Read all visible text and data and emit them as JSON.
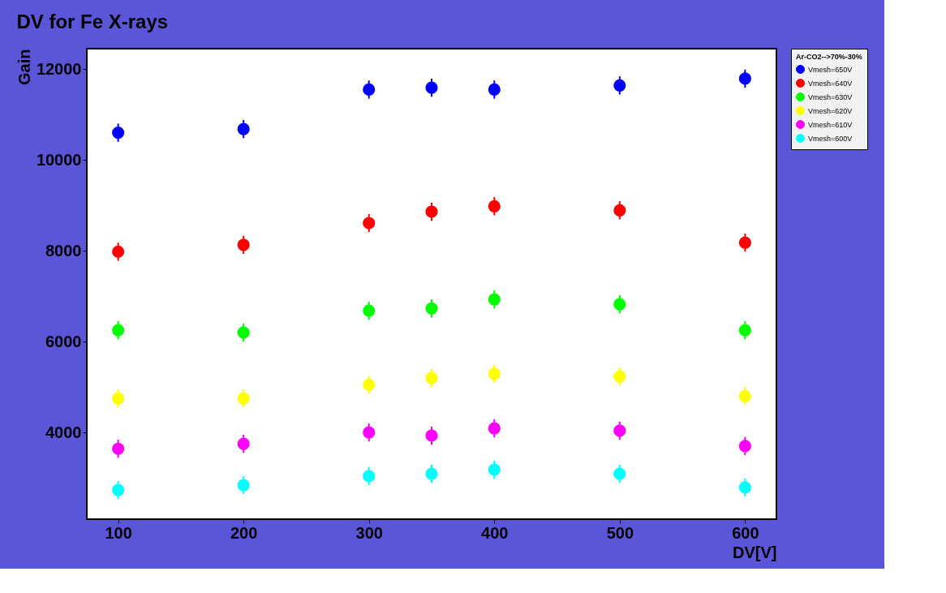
{
  "chart_data": {
    "type": "scatter",
    "title": "DV for Fe X-rays",
    "xlabel": "DV[V]",
    "ylabel": "Gain",
    "legend_title": "Ar-CO2-->70%-30%",
    "x": [
      100,
      200,
      300,
      350,
      400,
      500,
      600
    ],
    "series": [
      {
        "name": "Vmesh=650V",
        "color": "#0000ff",
        "values": [
          10600,
          10680,
          11550,
          11590,
          11550,
          11640,
          11790
        ],
        "errors": [
          200,
          200,
          200,
          200,
          200,
          200,
          200
        ]
      },
      {
        "name": "Vmesh=640V",
        "color": "#ff0000",
        "values": [
          7980,
          8130,
          8610,
          8860,
          8980,
          8890,
          8180
        ],
        "errors": [
          200,
          200,
          200,
          200,
          200,
          200,
          200
        ]
      },
      {
        "name": "Vmesh=630V",
        "color": "#00ff00",
        "values": [
          6250,
          6200,
          6680,
          6730,
          6930,
          6820,
          6250
        ],
        "errors": [
          200,
          200,
          200,
          200,
          200,
          200,
          200
        ]
      },
      {
        "name": "Vmesh=620V",
        "color": "#ffff00",
        "values": [
          4750,
          4750,
          5050,
          5200,
          5290,
          5230,
          4800
        ],
        "errors": [
          200,
          200,
          200,
          200,
          200,
          200,
          200
        ]
      },
      {
        "name": "Vmesh=610V",
        "color": "#ff00ff",
        "values": [
          3640,
          3750,
          4000,
          3930,
          4090,
          4040,
          3700
        ],
        "errors": [
          200,
          200,
          200,
          200,
          200,
          200,
          200
        ]
      },
      {
        "name": "Vmesh=600V",
        "color": "#00ffff",
        "values": [
          2730,
          2840,
          3040,
          3090,
          3180,
          3090,
          2790
        ],
        "errors": [
          200,
          200,
          200,
          200,
          200,
          200,
          200
        ]
      }
    ],
    "xlim": [
      75,
      625
    ],
    "xticks": [
      100,
      200,
      300,
      400,
      500,
      600
    ],
    "ylim": [
      2090,
      12450
    ],
    "yticks": [
      4000,
      6000,
      8000,
      10000,
      12000
    ],
    "grid": false,
    "legend": "top right",
    "marker": "circle"
  }
}
